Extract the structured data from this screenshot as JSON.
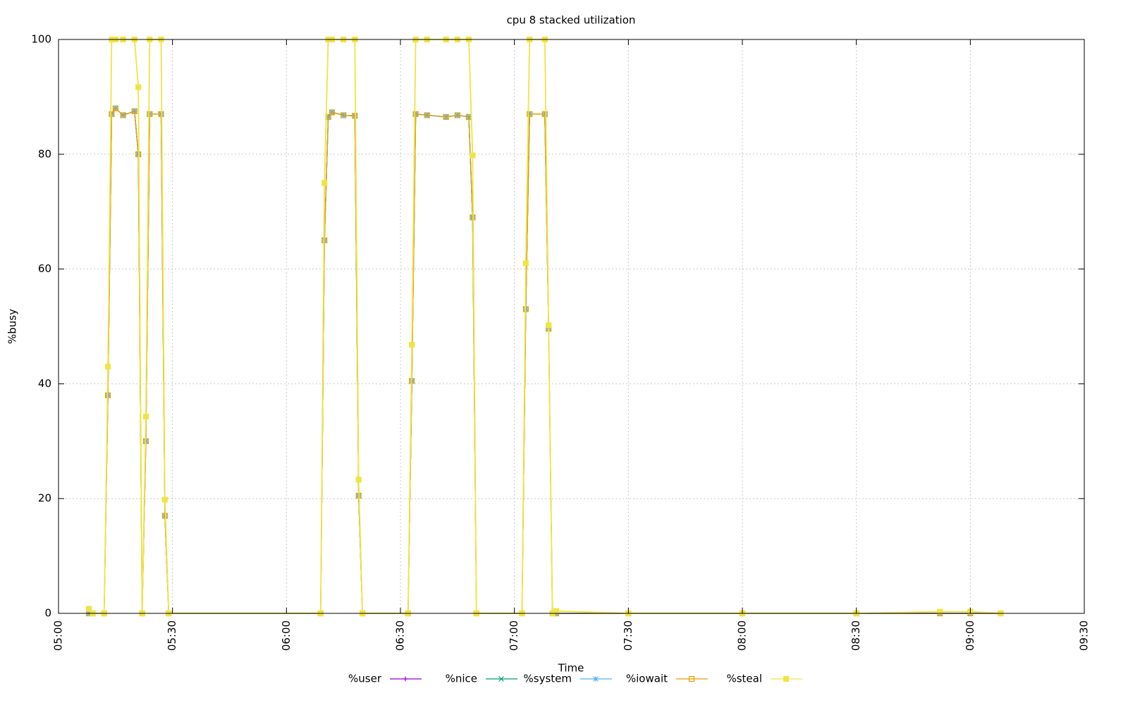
{
  "chart_data": {
    "type": "stacked-line",
    "title": "cpu 8 stacked utilization",
    "xlabel": "Time",
    "ylabel": "%busy",
    "x": [
      "05:08",
      "05:09",
      "05:12",
      "05:13",
      "05:14",
      "05:15",
      "05:17",
      "05:20",
      "05:21",
      "05:22",
      "05:23",
      "05:24",
      "05:27",
      "05:28",
      "05:29",
      "06:09",
      "06:10",
      "06:11",
      "06:12",
      "06:15",
      "06:18",
      "06:19",
      "06:20",
      "06:32",
      "06:33",
      "06:34",
      "06:37",
      "06:42",
      "06:45",
      "06:48",
      "06:49",
      "06:50",
      "07:02",
      "07:03",
      "07:04",
      "07:08",
      "07:09",
      "07:10",
      "07:11",
      "07:30",
      "08:00",
      "08:30",
      "08:52",
      "09:00",
      "09:08"
    ],
    "series": [
      {
        "name": "%user",
        "color": "#9400d3",
        "marker": "plus",
        "values": [
          0,
          0,
          0,
          38,
          87,
          88,
          86.8,
          87.5,
          80,
          0,
          30,
          87,
          87,
          17,
          0,
          0,
          65,
          86.5,
          87.3,
          86.8,
          86.7,
          20.5,
          0,
          0,
          40.5,
          87,
          86.8,
          86.5,
          86.8,
          86.5,
          69,
          0,
          0,
          53,
          87,
          87,
          49.6,
          0,
          0,
          0,
          0,
          0,
          0,
          0,
          0
        ]
      },
      {
        "name": "%nice",
        "color": "#009e73",
        "marker": "cross",
        "values": [
          0,
          0,
          0,
          0,
          0,
          0,
          0,
          0,
          0,
          0,
          0,
          0,
          0,
          0,
          0,
          0,
          0,
          0,
          0,
          0,
          0,
          0,
          0,
          0,
          0,
          0,
          0,
          0,
          0,
          0,
          0,
          0,
          0,
          0,
          0,
          0,
          0,
          0,
          0,
          0,
          0,
          0,
          0,
          0,
          0
        ]
      },
      {
        "name": "%system",
        "color": "#56b4e9",
        "marker": "star",
        "values": [
          0,
          0,
          0,
          0,
          0,
          0,
          0,
          0,
          0,
          0,
          0,
          0,
          0,
          0,
          0,
          0,
          0,
          0,
          0,
          0,
          0,
          0,
          0,
          0,
          0,
          0,
          0,
          0,
          0,
          0,
          0,
          0,
          0,
          0,
          0,
          0,
          0,
          0,
          0,
          0,
          0,
          0,
          0,
          0,
          0
        ]
      },
      {
        "name": "%iowait",
        "color": "#e69f00",
        "marker": "open-square",
        "values": [
          0,
          0,
          0,
          0,
          0,
          0,
          0,
          0,
          0,
          0,
          0,
          0,
          0,
          0,
          0,
          0,
          0,
          0,
          0,
          0,
          0,
          0,
          0,
          0,
          0,
          0,
          0,
          0,
          0,
          0,
          0,
          0,
          0,
          0,
          0,
          0,
          0,
          0,
          0,
          0,
          0,
          0,
          0,
          0,
          0
        ]
      },
      {
        "name": "%steal",
        "color": "#f0e442",
        "marker": "filled-square",
        "values": [
          0.8,
          0,
          0,
          5,
          13,
          12,
          13.2,
          12.5,
          11.7,
          0,
          4.3,
          13,
          13,
          2.8,
          0,
          0,
          10,
          13.5,
          12.7,
          13.2,
          13.3,
          2.8,
          0,
          0,
          6.3,
          13,
          13.2,
          13.5,
          13.2,
          13.5,
          10.8,
          0,
          0,
          8,
          13,
          13,
          0.6,
          0,
          0.4,
          0,
          0,
          0,
          0.3,
          0.3,
          0
        ]
      }
    ],
    "xlim": [
      "05:00",
      "09:30"
    ],
    "xticks": [
      "05:00",
      "05:30",
      "06:00",
      "06:30",
      "07:00",
      "07:30",
      "08:00",
      "08:30",
      "09:00",
      "09:30"
    ],
    "ylim": [
      0,
      100
    ],
    "yticks": [
      0,
      20,
      40,
      60,
      80,
      100
    ],
    "grid": true,
    "legend": "bottom"
  }
}
